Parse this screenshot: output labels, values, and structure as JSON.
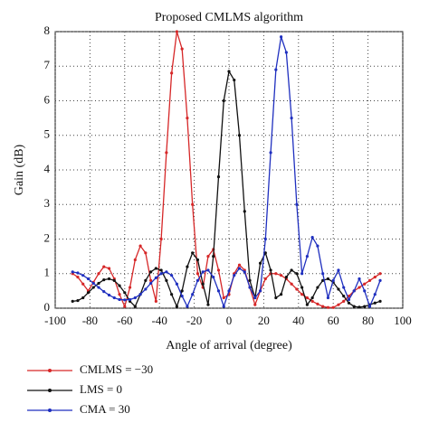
{
  "chart_data": {
    "type": "line",
    "title": "Proposed CMLMS algorithm",
    "x_label": "Angle of arrival (degree)",
    "y_label": "Gain (dB)",
    "x": [
      -90,
      -87,
      -84,
      -81,
      -78,
      -75,
      -72,
      -69,
      -66,
      -63,
      -60,
      -57,
      -54,
      -51,
      -48,
      -45,
      -42,
      -39,
      -36,
      -33,
      -30,
      -27,
      -24,
      -21,
      -18,
      -15,
      -12,
      -9,
      -6,
      -3,
      0,
      3,
      6,
      9,
      12,
      15,
      18,
      21,
      24,
      27,
      30,
      33,
      36,
      39,
      42,
      45,
      48,
      51,
      54,
      57,
      60,
      63,
      66,
      69,
      72,
      75,
      78,
      81,
      84,
      87
    ],
    "series": [
      {
        "name": "CMLMS = −30",
        "color": "#d62728",
        "values": [
          1.0,
          0.9,
          0.7,
          0.5,
          0.75,
          1.0,
          1.2,
          1.15,
          0.85,
          0.4,
          0.05,
          0.6,
          1.4,
          1.8,
          1.6,
          0.8,
          0.2,
          2.0,
          4.5,
          6.8,
          8.0,
          7.5,
          5.5,
          3.0,
          1.0,
          0.6,
          1.5,
          1.7,
          1.1,
          0.3,
          0.4,
          1.0,
          1.25,
          1.1,
          0.6,
          0.1,
          0.5,
          0.85,
          1.0,
          1.0,
          0.95,
          0.85,
          0.7,
          0.55,
          0.4,
          0.3,
          0.2,
          0.12,
          0.05,
          0.02,
          0.02,
          0.1,
          0.2,
          0.35,
          0.5,
          0.6,
          0.7,
          0.8,
          0.9,
          1.0
        ]
      },
      {
        "name": "LMS = 0",
        "color": "#111111",
        "values": [
          0.2,
          0.22,
          0.3,
          0.45,
          0.6,
          0.72,
          0.82,
          0.85,
          0.8,
          0.65,
          0.45,
          0.2,
          0.05,
          0.4,
          0.8,
          1.05,
          1.15,
          1.1,
          0.8,
          0.4,
          0.05,
          0.5,
          1.2,
          1.6,
          1.4,
          0.7,
          0.1,
          1.5,
          3.8,
          6.0,
          6.85,
          6.6,
          5.0,
          2.8,
          0.8,
          0.3,
          1.3,
          1.6,
          1.1,
          0.3,
          0.4,
          0.9,
          1.1,
          1.0,
          0.6,
          0.1,
          0.3,
          0.6,
          0.8,
          0.85,
          0.75,
          0.55,
          0.35,
          0.15,
          0.05,
          0.03,
          0.05,
          0.1,
          0.15,
          0.2
        ]
      },
      {
        "name": "CMA = 30",
        "color": "#1f2fbf",
        "values": [
          1.05,
          1.02,
          0.95,
          0.85,
          0.72,
          0.6,
          0.48,
          0.38,
          0.3,
          0.25,
          0.24,
          0.25,
          0.3,
          0.4,
          0.55,
          0.72,
          0.88,
          1.0,
          1.05,
          0.95,
          0.7,
          0.35,
          0.05,
          0.4,
          0.8,
          1.05,
          1.1,
          0.9,
          0.5,
          0.05,
          0.5,
          0.95,
          1.15,
          1.05,
          0.6,
          0.3,
          0.5,
          2.0,
          4.5,
          6.9,
          7.85,
          7.4,
          5.5,
          3.0,
          1.0,
          1.5,
          2.05,
          1.8,
          1.0,
          0.3,
          0.8,
          1.1,
          0.6,
          0.25,
          0.5,
          0.85,
          0.5,
          0.05,
          0.4,
          0.8
        ]
      }
    ],
    "xlim": [
      -100,
      100
    ],
    "xticks": [
      -100,
      -80,
      -60,
      -40,
      -20,
      0,
      20,
      40,
      60,
      80,
      100
    ],
    "ylim": [
      0,
      8
    ],
    "yticks": [
      0,
      1,
      2,
      3,
      4,
      5,
      6,
      7,
      8
    ],
    "grid": true
  }
}
